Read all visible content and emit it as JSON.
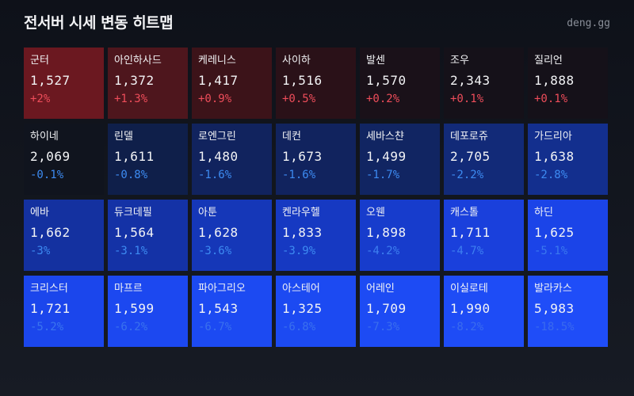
{
  "header": {
    "title": "전서버 시세 변동 히트맵",
    "brand": "deng.gg"
  },
  "chart_data": {
    "type": "heatmap",
    "title": "전서버 시세 변동 히트맵",
    "layout": {
      "rows": 4,
      "columns": 7
    },
    "color_scale": {
      "positive": "#7a1a22",
      "neutral": "#11151f",
      "negative": "#1f4dff"
    },
    "cells": [
      {
        "name": "군터",
        "price": "1,527",
        "change": "+2%",
        "value": 2.0,
        "bg": "#6b1820",
        "fg": "#ee4d5a"
      },
      {
        "name": "아인하사드",
        "price": "1,372",
        "change": "+1.3%",
        "value": 1.3,
        "bg": "#4e161d",
        "fg": "#ee4d5a"
      },
      {
        "name": "케레니스",
        "price": "1,417",
        "change": "+0.9%",
        "value": 0.9,
        "bg": "#3c1319",
        "fg": "#ee4d5a"
      },
      {
        "name": "사이하",
        "price": "1,516",
        "change": "+0.5%",
        "value": 0.5,
        "bg": "#2a1118",
        "fg": "#ee4d5a"
      },
      {
        "name": "발센",
        "price": "1,570",
        "change": "+0.2%",
        "value": 0.2,
        "bg": "#1a1119",
        "fg": "#ee4d5a"
      },
      {
        "name": "조우",
        "price": "2,343",
        "change": "+0.1%",
        "value": 0.1,
        "bg": "#151119",
        "fg": "#ee4d5a"
      },
      {
        "name": "질리언",
        "price": "1,888",
        "change": "+0.1%",
        "value": 0.1,
        "bg": "#151119",
        "fg": "#ee4d5a"
      },
      {
        "name": "하이네",
        "price": "2,069",
        "change": "-0.1%",
        "value": -0.1,
        "bg": "#10141e",
        "fg": "#3d8bf2"
      },
      {
        "name": "린델",
        "price": "1,611",
        "change": "-0.8%",
        "value": -0.8,
        "bg": "#0f1f4a",
        "fg": "#3d8bf2"
      },
      {
        "name": "로엔그린",
        "price": "1,480",
        "change": "-1.6%",
        "value": -1.6,
        "bg": "#11235e",
        "fg": "#3d8bf2"
      },
      {
        "name": "데컨",
        "price": "1,673",
        "change": "-1.6%",
        "value": -1.6,
        "bg": "#11235e",
        "fg": "#3d8bf2"
      },
      {
        "name": "세바스챤",
        "price": "1,499",
        "change": "-1.7%",
        "value": -1.7,
        "bg": "#112562",
        "fg": "#3d8bf2"
      },
      {
        "name": "데포로쥬",
        "price": "2,705",
        "change": "-2.2%",
        "value": -2.2,
        "bg": "#122a78",
        "fg": "#3d8bf2"
      },
      {
        "name": "가드리아",
        "price": "1,638",
        "change": "-2.8%",
        "value": -2.8,
        "bg": "#132f8e",
        "fg": "#3d8bf2"
      },
      {
        "name": "에바",
        "price": "1,662",
        "change": "-3%",
        "value": -3.0,
        "bg": "#1431a0",
        "fg": "#3d8bf2"
      },
      {
        "name": "듀크데필",
        "price": "1,564",
        "change": "-3.1%",
        "value": -3.1,
        "bg": "#1432a6",
        "fg": "#3d8bf2"
      },
      {
        "name": "아툰",
        "price": "1,628",
        "change": "-3.6%",
        "value": -3.6,
        "bg": "#1537b8",
        "fg": "#3d8bf2"
      },
      {
        "name": "켄라우헬",
        "price": "1,833",
        "change": "-3.9%",
        "value": -3.9,
        "bg": "#1639c2",
        "fg": "#3d8bf2"
      },
      {
        "name": "오웬",
        "price": "1,898",
        "change": "-4.2%",
        "value": -4.2,
        "bg": "#173ccc",
        "fg": "#3d7ff0"
      },
      {
        "name": "캐스톨",
        "price": "1,711",
        "change": "-4.7%",
        "value": -4.7,
        "bg": "#1a40dc",
        "fg": "#3d7ff0"
      },
      {
        "name": "하딘",
        "price": "1,625",
        "change": "-5.1%",
        "value": -5.1,
        "bg": "#1b44e8",
        "fg": "#3a78ef"
      },
      {
        "name": "크리스터",
        "price": "1,721",
        "change": "-5.2%",
        "value": -5.2,
        "bg": "#1b46ec",
        "fg": "#3a75ee"
      },
      {
        "name": "마프르",
        "price": "1,599",
        "change": "-6.2%",
        "value": -6.2,
        "bg": "#1c48f0",
        "fg": "#3a72ee"
      },
      {
        "name": "파아그리오",
        "price": "1,543",
        "change": "-6.7%",
        "value": -6.7,
        "bg": "#1c4af2",
        "fg": "#3a70ee"
      },
      {
        "name": "아스테어",
        "price": "1,325",
        "change": "-6.8%",
        "value": -6.8,
        "bg": "#1c4af2",
        "fg": "#3a70ee"
      },
      {
        "name": "어레인",
        "price": "1,709",
        "change": "-7.3%",
        "value": -7.3,
        "bg": "#1d4bf4",
        "fg": "#3a6eee"
      },
      {
        "name": "이실로테",
        "price": "1,990",
        "change": "-8.2%",
        "value": -8.2,
        "bg": "#1e4cf6",
        "fg": "#3a6cee"
      },
      {
        "name": "발라카스",
        "price": "5,983",
        "change": "-18.5%",
        "value": -18.5,
        "bg": "#1f4df8",
        "fg": "#3a6aee"
      }
    ]
  }
}
